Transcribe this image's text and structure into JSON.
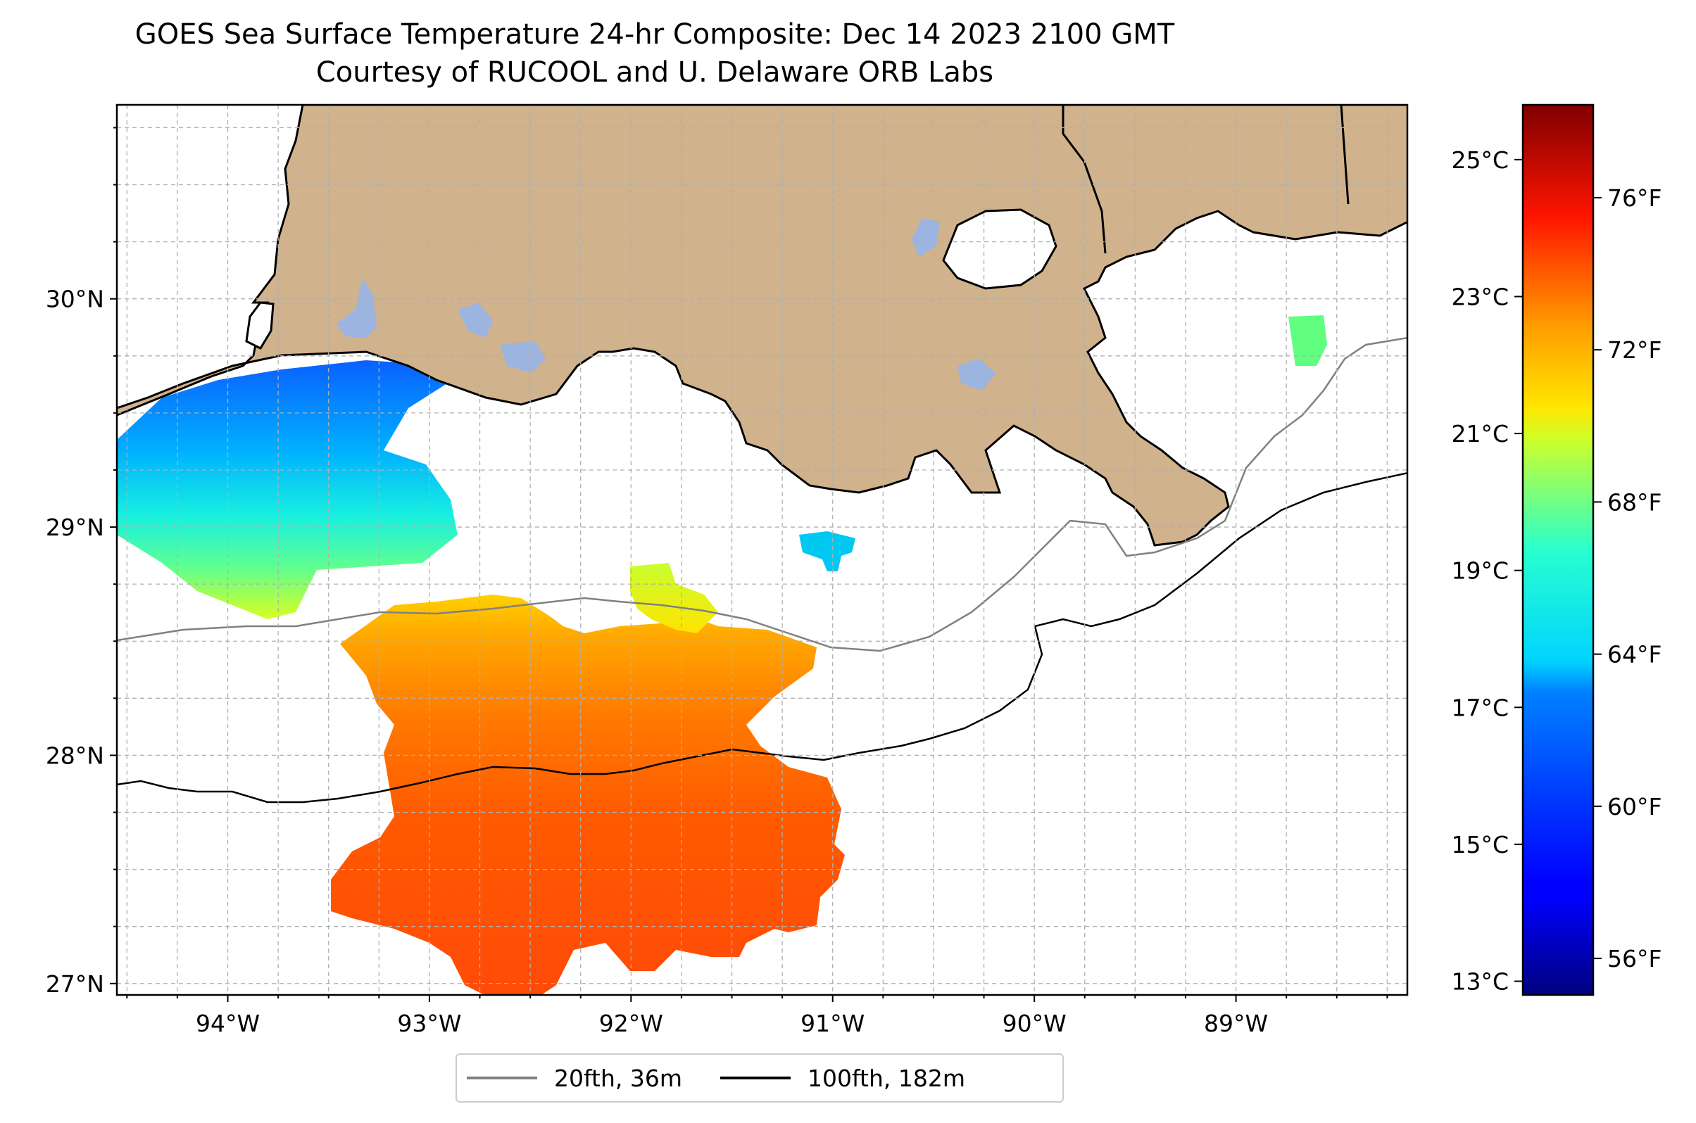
{
  "title": {
    "line1": "GOES Sea Surface Temperature 24-hr Composite: Dec 14 2023 2100 GMT",
    "line2": "Courtesy of RUCOOL and U. Delaware ORB Labs"
  },
  "map": {
    "lon_range": [
      -94.55,
      -88.15
    ],
    "lat_range": [
      26.95,
      30.85
    ],
    "lon_ticks": [
      -94,
      -93,
      -92,
      -91,
      -90,
      -89
    ],
    "lon_tick_labels": [
      "94°W",
      "93°W",
      "92°W",
      "91°W",
      "90°W",
      "89°W"
    ],
    "lat_ticks": [
      27,
      28,
      29,
      30
    ],
    "lat_tick_labels": [
      "27°N",
      "28°N",
      "29°N",
      "30°N"
    ],
    "grid": "dashed",
    "land_color": "#d0b28c",
    "lake_color": "#9cb4e0"
  },
  "colorbar": {
    "colormap": "jet",
    "celsius_range": [
      12.8,
      25.8
    ],
    "celsius_ticks": [
      13,
      15,
      17,
      19,
      21,
      23,
      25
    ],
    "celsius_labels": [
      "13°C",
      "15°C",
      "17°C",
      "19°C",
      "21°C",
      "23°C",
      "25°C"
    ],
    "fahrenheit_ticks": [
      56,
      60,
      64,
      68,
      72,
      76
    ],
    "fahrenheit_labels": [
      "56°F",
      "60°F",
      "64°F",
      "68°F",
      "72°F",
      "76°F"
    ]
  },
  "legend": {
    "placement": "bottom-center",
    "items": [
      {
        "label": "20fth, 36m",
        "color": "#808080"
      },
      {
        "label": "100fth, 182m",
        "color": "#000000"
      }
    ]
  }
}
